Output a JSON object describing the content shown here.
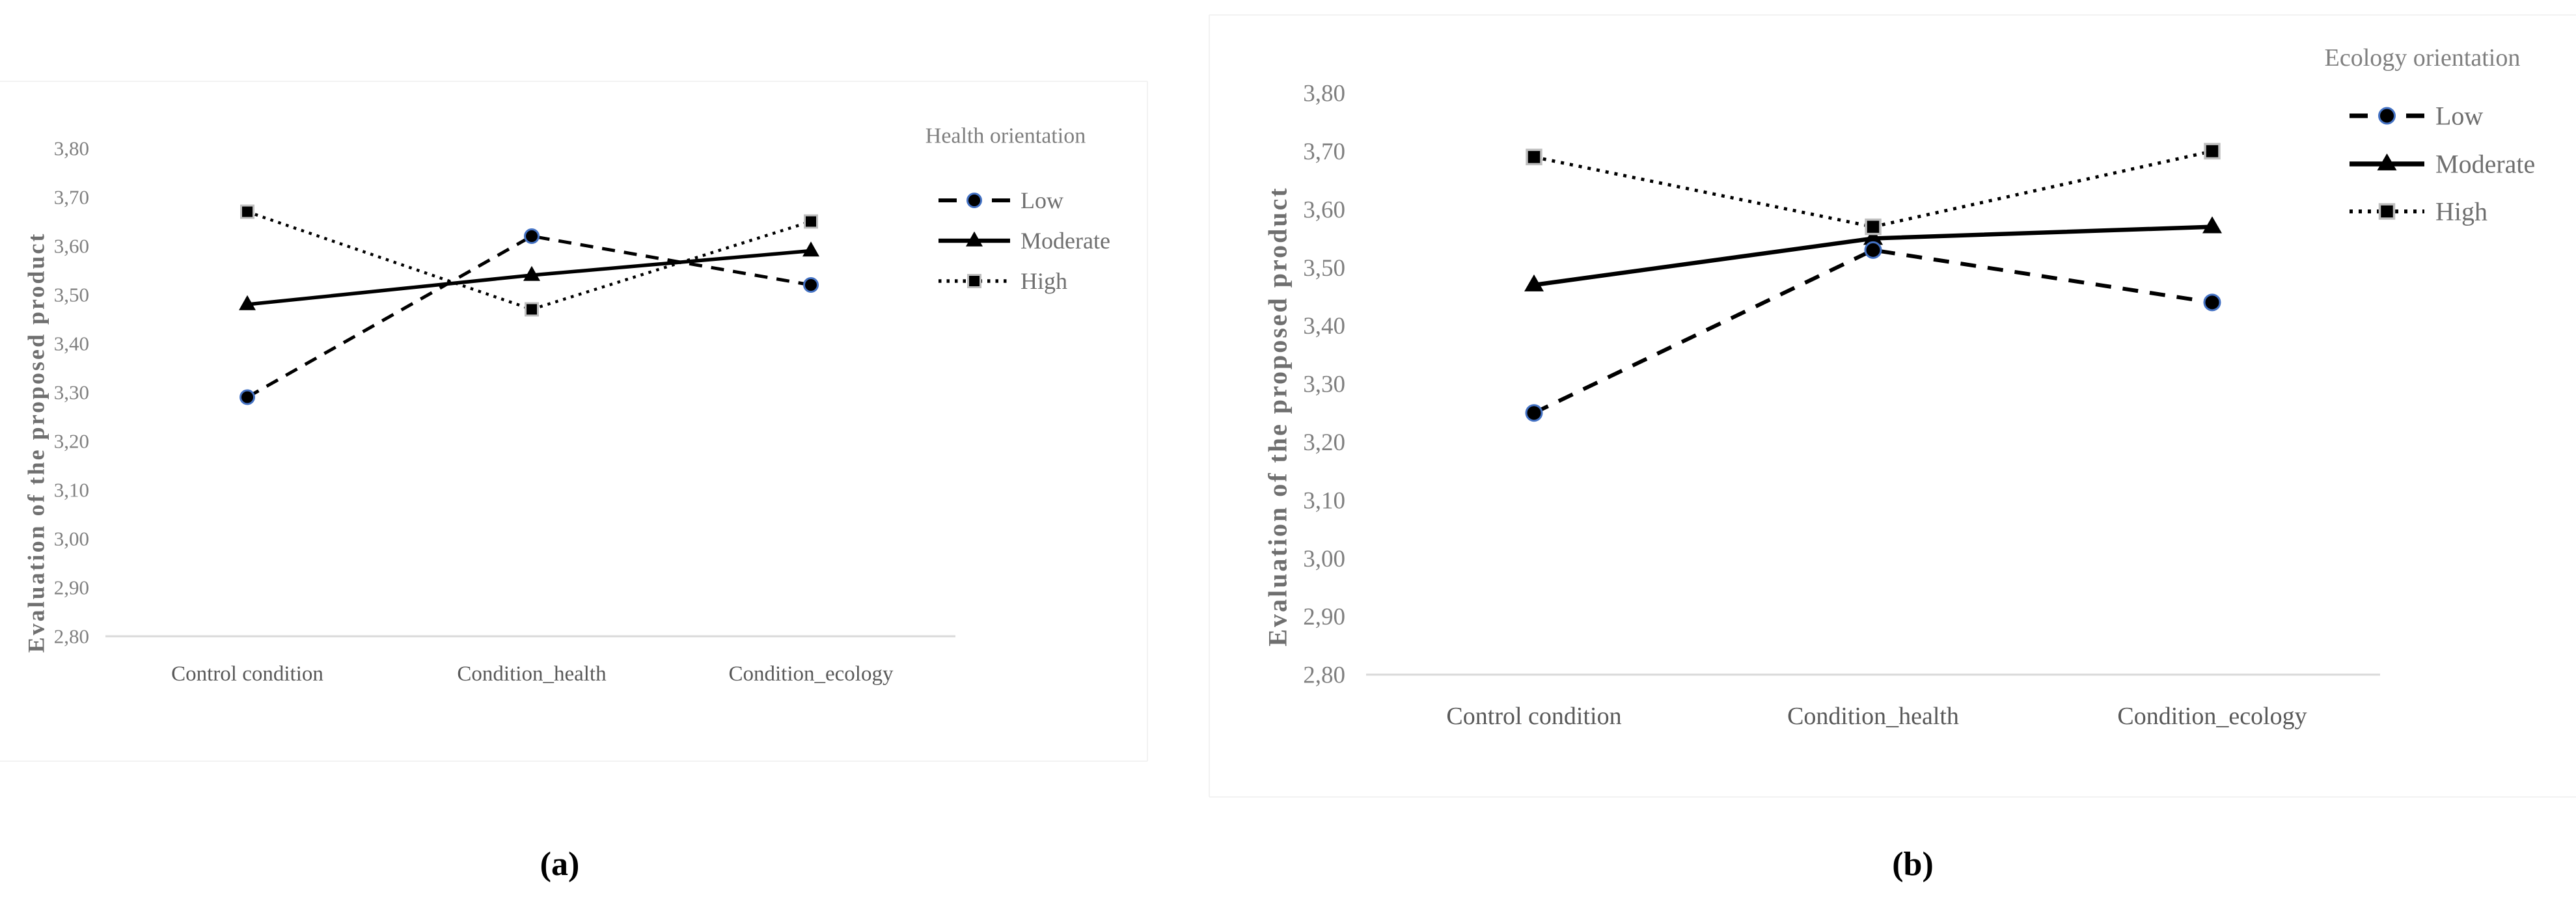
{
  "figure": {
    "background": "#ffffff",
    "panel_labels": [
      "(a)",
      "(b)"
    ],
    "y_axis_title": "Evaluation of the proposed product",
    "y_tick_labels": [
      "3,80",
      "3,70",
      "3,60",
      "3,50",
      "3,40",
      "3,30",
      "3,20",
      "3,10",
      "3,00",
      "2,90",
      "2,80"
    ],
    "categories": [
      "Control condition",
      "Condition_health",
      "Condition_ecology"
    ],
    "legend_entries": [
      "Low",
      "Moderate",
      "High"
    ],
    "colors": {
      "axis_line": "#d9d9d9",
      "tick_text": "#7f7f7f",
      "category_text": "#595959",
      "legend_text": "#6f6f6f",
      "legend_title_text": "#7f7f7f",
      "y_title_text": "#6f6f6f",
      "series_black": "#000000",
      "circle_marker_ring": "#4472c4",
      "square_marker_halo": "#bfbfbf",
      "panel_label_text": "#000000",
      "plate_border": "#f2f2f2"
    }
  },
  "chart_data": [
    {
      "type": "line",
      "panel_label": "(a)",
      "legend_title": "Health orientation",
      "legend_position": "right",
      "grid": false,
      "ylabel": "Evaluation of the proposed product",
      "ylim": [
        2.8,
        3.8
      ],
      "ytick_interval": 0.1,
      "decimal_separator": ",",
      "categories": [
        "Control condition",
        "Condition_health",
        "Condition_ecology"
      ],
      "series": [
        {
          "name": "Low",
          "line_style": "dashed",
          "marker": "circle",
          "values": [
            3.29,
            3.62,
            3.52
          ]
        },
        {
          "name": "Moderate",
          "line_style": "solid",
          "marker": "triangle",
          "values": [
            3.48,
            3.54,
            3.59
          ]
        },
        {
          "name": "High",
          "line_style": "dotted",
          "marker": "square",
          "values": [
            3.67,
            3.47,
            3.65
          ]
        }
      ]
    },
    {
      "type": "line",
      "panel_label": "(b)",
      "legend_title": "Ecology orientation",
      "legend_position": "top-right",
      "grid": false,
      "ylabel": "Evaluation of the proposed product",
      "ylim": [
        2.8,
        3.8
      ],
      "ytick_interval": 0.1,
      "decimal_separator": ",",
      "categories": [
        "Control condition",
        "Condition_health",
        "Condition_ecology"
      ],
      "series": [
        {
          "name": "Low",
          "line_style": "dashed",
          "marker": "circle",
          "values": [
            3.25,
            3.53,
            3.44
          ]
        },
        {
          "name": "Moderate",
          "line_style": "solid",
          "marker": "triangle",
          "values": [
            3.47,
            3.55,
            3.57
          ]
        },
        {
          "name": "High",
          "line_style": "dotted",
          "marker": "square",
          "values": [
            3.69,
            3.57,
            3.7
          ]
        }
      ]
    }
  ]
}
